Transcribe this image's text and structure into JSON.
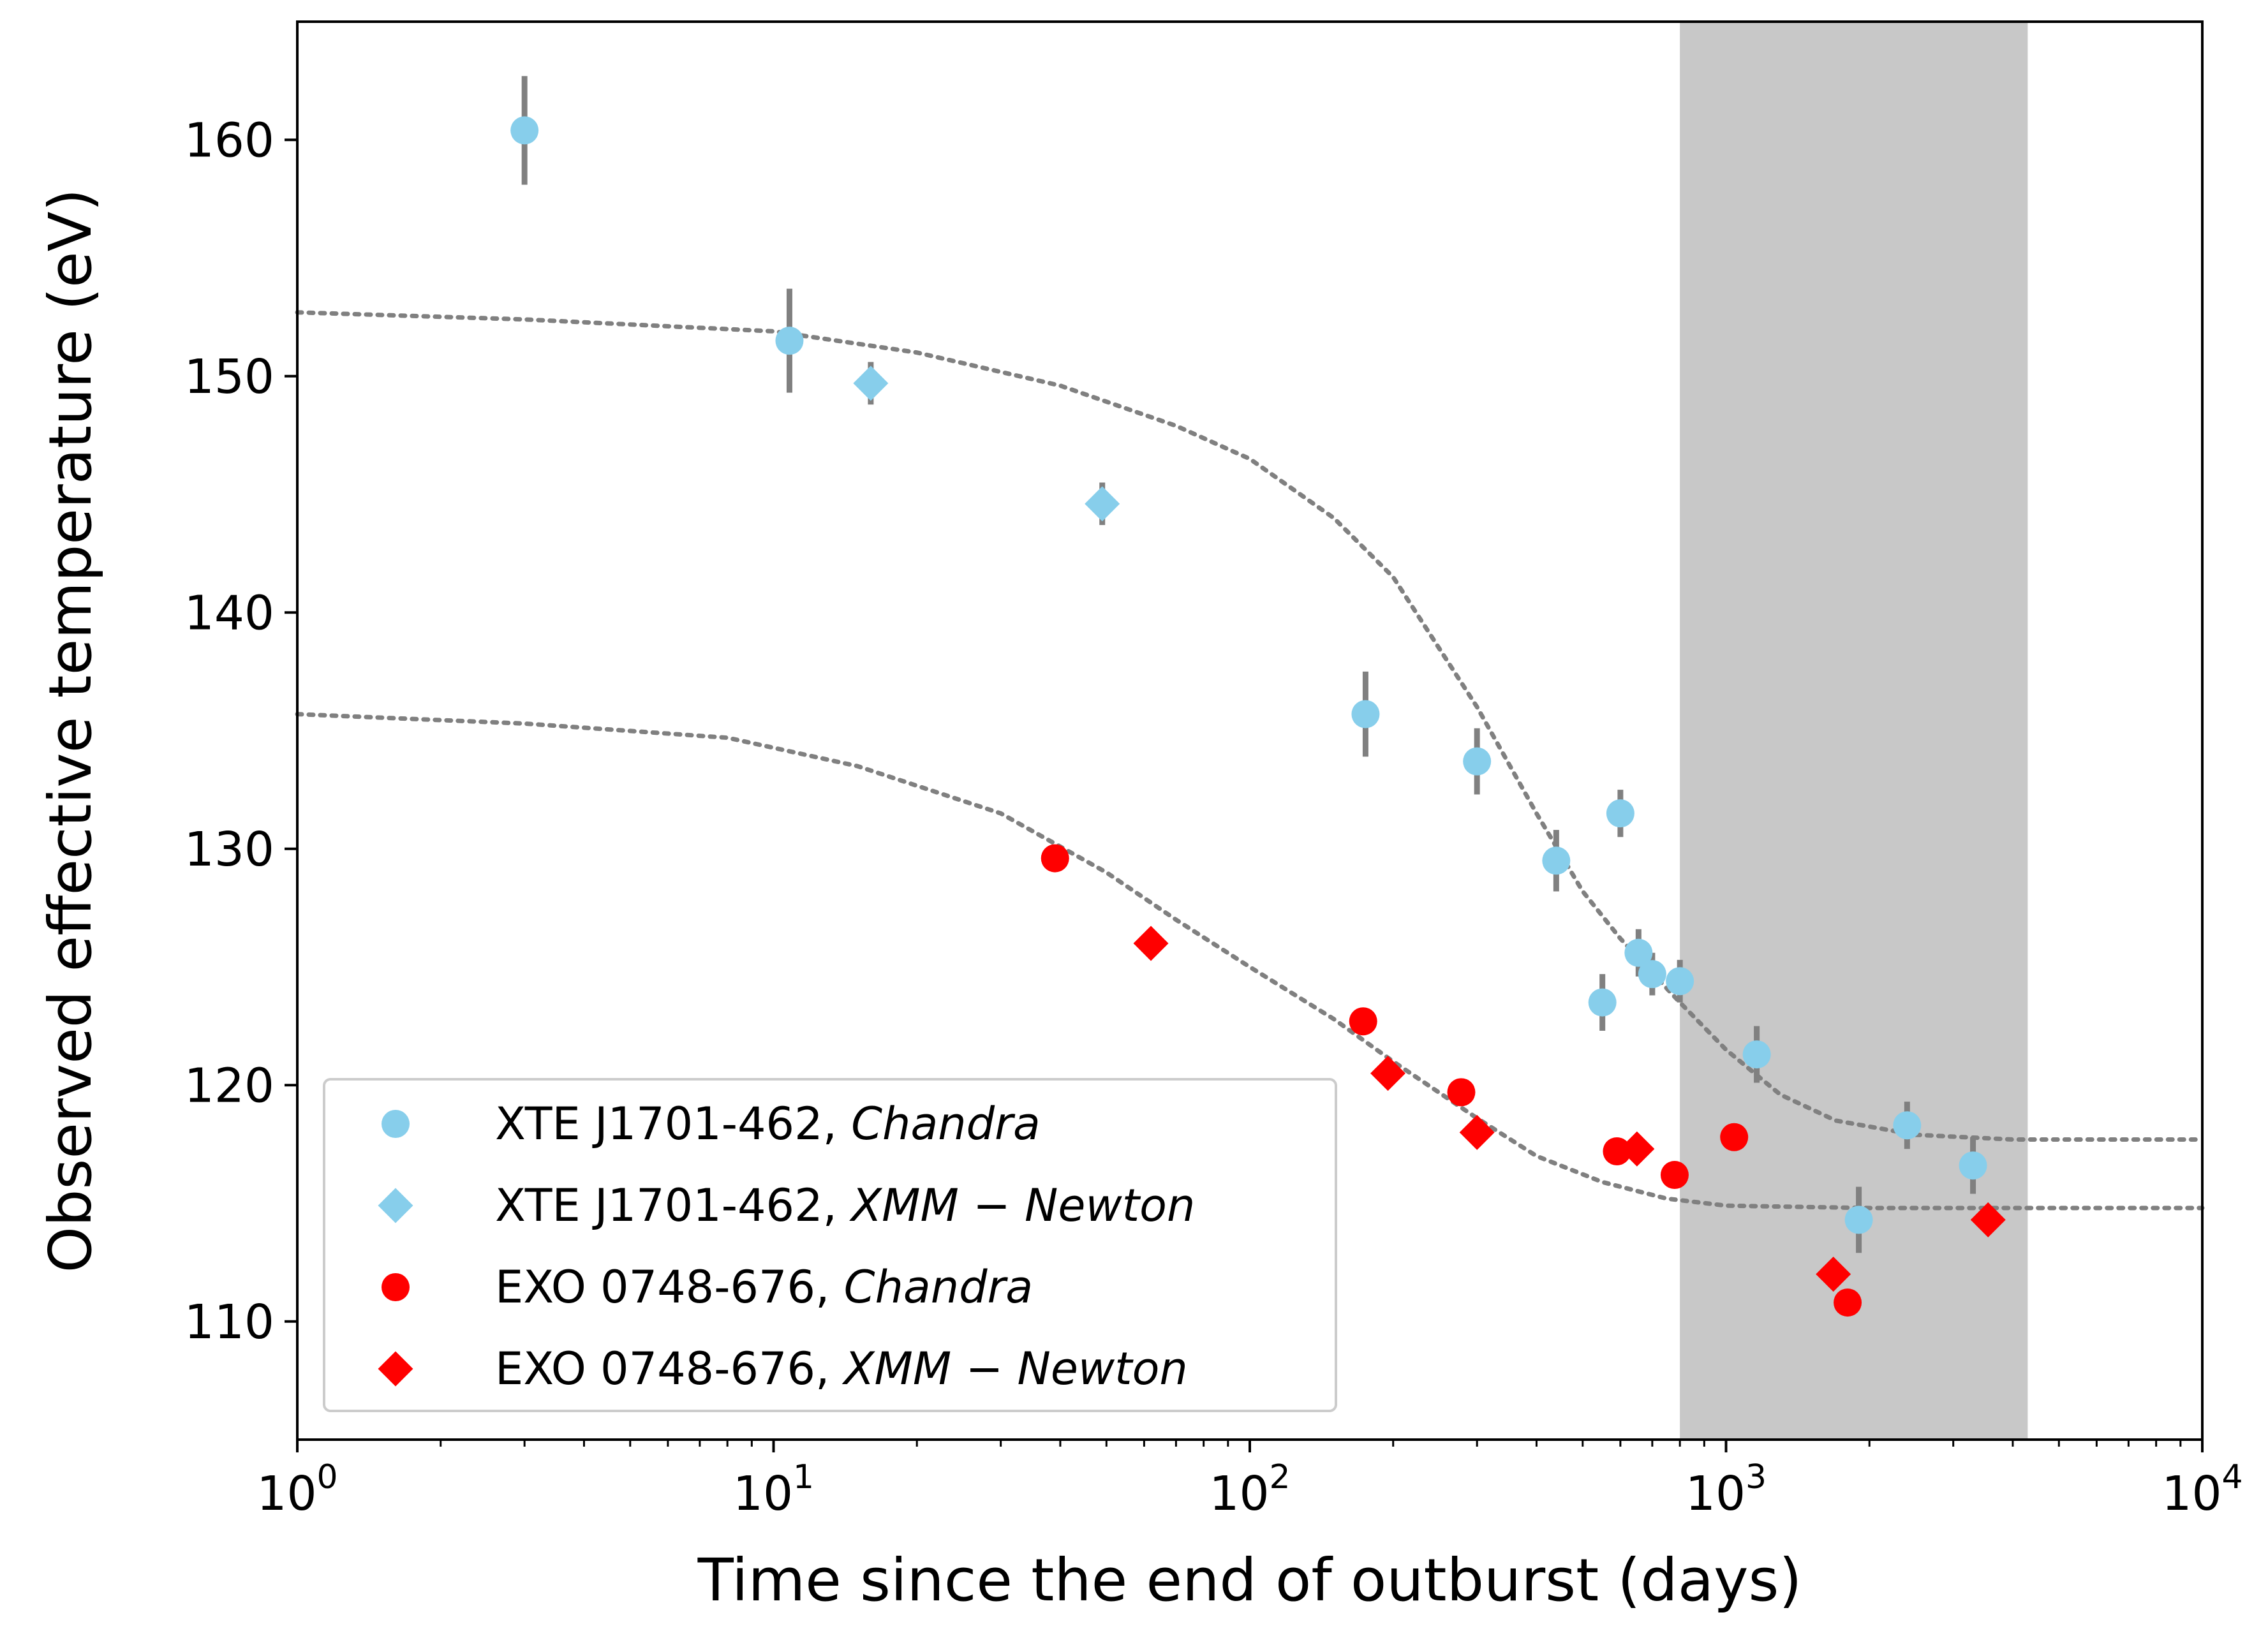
{
  "chart_data": {
    "type": "scatter",
    "xlabel": "Time since the end of outburst (days)",
    "ylabel": "Observed effective temperature (eV)",
    "xscale": "log",
    "xlim": [
      1,
      10000
    ],
    "ylim": [
      105,
      165
    ],
    "grid": false,
    "legend_position": "lower-left",
    "x_ticks": [
      {
        "value": 1,
        "base": "10",
        "exp": "0"
      },
      {
        "value": 10,
        "base": "10",
        "exp": "1"
      },
      {
        "value": 100,
        "base": "10",
        "exp": "2"
      },
      {
        "value": 1000,
        "base": "10",
        "exp": "3"
      },
      {
        "value": 10000,
        "base": "10",
        "exp": "4"
      }
    ],
    "y_ticks": [
      110,
      120,
      130,
      140,
      150,
      160
    ],
    "shaded_region": {
      "x_start": 800,
      "x_end": 4300,
      "color": "#c8c8c8"
    },
    "series": [
      {
        "name": "XTE J1701-462, ",
        "name_italic": "Chandra",
        "marker": "circle",
        "color": "#87ceeb",
        "points": [
          {
            "x": 3.0,
            "y": 160.4,
            "err": 2.3
          },
          {
            "x": 10.8,
            "y": 151.5,
            "err": 2.2
          },
          {
            "x": 175,
            "y": 135.7,
            "err": 1.8
          },
          {
            "x": 300,
            "y": 133.7,
            "err": 1.4
          },
          {
            "x": 440,
            "y": 129.5,
            "err": 1.3
          },
          {
            "x": 550,
            "y": 123.5,
            "err": 1.2
          },
          {
            "x": 600,
            "y": 131.5,
            "err": 1.0
          },
          {
            "x": 655,
            "y": 125.6,
            "err": 1.0
          },
          {
            "x": 700,
            "y": 124.7,
            "err": 0.9
          },
          {
            "x": 800,
            "y": 124.4,
            "err": 0.9
          },
          {
            "x": 1160,
            "y": 121.3,
            "err": 1.2
          },
          {
            "x": 1900,
            "y": 114.3,
            "err": 1.4
          },
          {
            "x": 2400,
            "y": 118.3,
            "err": 1.0
          },
          {
            "x": 3300,
            "y": 116.6,
            "err": 1.2
          }
        ]
      },
      {
        "name": "XTE J1701-462, ",
        "name_italic": "XMM − Newton",
        "marker": "diamond",
        "color": "#87ceeb",
        "points": [
          {
            "x": 16,
            "y": 149.7,
            "err": 0.9
          },
          {
            "x": 49,
            "y": 144.6,
            "err": 0.9
          }
        ]
      },
      {
        "name": "EXO 0748-676, ",
        "name_italic": "Chandra",
        "marker": "circle",
        "color": "#ff0000",
        "points": [
          {
            "x": 39,
            "y": 129.6
          },
          {
            "x": 173,
            "y": 122.7
          },
          {
            "x": 278,
            "y": 119.7
          },
          {
            "x": 590,
            "y": 117.2
          },
          {
            "x": 780,
            "y": 116.2
          },
          {
            "x": 1040,
            "y": 117.8
          },
          {
            "x": 1800,
            "y": 110.8
          }
        ]
      },
      {
        "name": "EXO 0748-676, ",
        "name_italic": "XMM − Newton",
        "marker": "diamond",
        "color": "#ff0000",
        "points": [
          {
            "x": 62,
            "y": 126.0
          },
          {
            "x": 195,
            "y": 120.5
          },
          {
            "x": 300,
            "y": 118.0
          },
          {
            "x": 650,
            "y": 117.3
          },
          {
            "x": 1680,
            "y": 112.0
          },
          {
            "x": 3550,
            "y": 114.3
          }
        ]
      }
    ],
    "fit_curves": [
      {
        "style": "dotted",
        "color": "#808080",
        "points": [
          {
            "x": 1,
            "y": 152.7
          },
          {
            "x": 3,
            "y": 152.4
          },
          {
            "x": 10,
            "y": 151.9
          },
          {
            "x": 20,
            "y": 151.0
          },
          {
            "x": 40,
            "y": 149.6
          },
          {
            "x": 70,
            "y": 147.9
          },
          {
            "x": 100,
            "y": 146.5
          },
          {
            "x": 150,
            "y": 144.0
          },
          {
            "x": 200,
            "y": 141.5
          },
          {
            "x": 300,
            "y": 136.0
          },
          {
            "x": 400,
            "y": 131.5
          },
          {
            "x": 500,
            "y": 128.2
          },
          {
            "x": 600,
            "y": 126.2
          },
          {
            "x": 800,
            "y": 123.5
          },
          {
            "x": 1000,
            "y": 121.5
          },
          {
            "x": 1300,
            "y": 119.6
          },
          {
            "x": 1700,
            "y": 118.5
          },
          {
            "x": 2500,
            "y": 117.9
          },
          {
            "x": 4000,
            "y": 117.7
          },
          {
            "x": 10000,
            "y": 117.7
          }
        ]
      },
      {
        "style": "dotted",
        "color": "#808080",
        "points": [
          {
            "x": 1,
            "y": 135.7
          },
          {
            "x": 3,
            "y": 135.3
          },
          {
            "x": 8,
            "y": 134.7
          },
          {
            "x": 15,
            "y": 133.5
          },
          {
            "x": 30,
            "y": 131.5
          },
          {
            "x": 50,
            "y": 129.0
          },
          {
            "x": 70,
            "y": 127.0
          },
          {
            "x": 100,
            "y": 125.0
          },
          {
            "x": 150,
            "y": 122.8
          },
          {
            "x": 200,
            "y": 121.0
          },
          {
            "x": 300,
            "y": 118.6
          },
          {
            "x": 400,
            "y": 117.0
          },
          {
            "x": 550,
            "y": 115.9
          },
          {
            "x": 750,
            "y": 115.2
          },
          {
            "x": 1000,
            "y": 114.9
          },
          {
            "x": 2000,
            "y": 114.8
          },
          {
            "x": 10000,
            "y": 114.8
          }
        ]
      }
    ]
  }
}
